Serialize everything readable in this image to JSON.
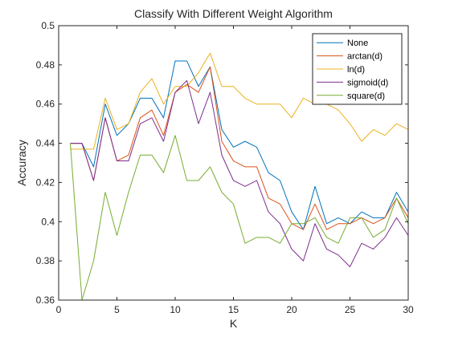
{
  "chart_data": {
    "type": "line",
    "title": "Classify With Different Weight Algorithm",
    "xlabel": "K",
    "ylabel": "Accuracy",
    "xlim": [
      0,
      30
    ],
    "ylim": [
      0.36,
      0.5
    ],
    "xticks": [
      0,
      5,
      10,
      15,
      20,
      25,
      30
    ],
    "yticks": [
      0.36,
      0.38,
      0.4,
      0.42,
      0.44,
      0.46,
      0.48,
      0.5
    ],
    "xtick_labels": [
      "0",
      "5",
      "10",
      "15",
      "20",
      "25",
      "30"
    ],
    "ytick_labels": [
      "0.36",
      "0.38",
      "0.4",
      "0.42",
      "0.44",
      "0.46",
      "0.48",
      "0.5"
    ],
    "grid": false,
    "legend_position": "top-right",
    "x": [
      1,
      2,
      3,
      4,
      5,
      6,
      7,
      8,
      9,
      10,
      11,
      12,
      13,
      14,
      15,
      16,
      17,
      18,
      19,
      20,
      21,
      22,
      23,
      24,
      25,
      26,
      27,
      28,
      29,
      30
    ],
    "series": [
      {
        "name": "None",
        "color": "#0072BD",
        "values": [
          0.44,
          0.44,
          0.428,
          0.46,
          0.444,
          0.45,
          0.463,
          0.463,
          0.453,
          0.482,
          0.482,
          0.469,
          0.479,
          0.447,
          0.438,
          0.441,
          0.438,
          0.425,
          0.421,
          0.405,
          0.396,
          0.418,
          0.399,
          0.402,
          0.399,
          0.405,
          0.402,
          0.402,
          0.415,
          0.405
        ]
      },
      {
        "name": "arctan(d)",
        "color": "#D95319",
        "values": [
          0.44,
          0.44,
          0.421,
          0.453,
          0.431,
          0.434,
          0.453,
          0.457,
          0.444,
          0.466,
          0.47,
          0.466,
          0.479,
          0.441,
          0.431,
          0.428,
          0.428,
          0.412,
          0.409,
          0.399,
          0.396,
          0.409,
          0.396,
          0.399,
          0.399,
          0.402,
          0.399,
          0.402,
          0.412,
          0.402
        ]
      },
      {
        "name": "ln(d)",
        "color": "#EDB120",
        "values": [
          0.437,
          0.437,
          0.437,
          0.463,
          0.447,
          0.45,
          0.466,
          0.473,
          0.46,
          0.469,
          0.469,
          0.476,
          0.486,
          0.469,
          0.469,
          0.463,
          0.46,
          0.46,
          0.46,
          0.453,
          0.463,
          0.46,
          0.46,
          0.457,
          0.45,
          0.441,
          0.447,
          0.444,
          0.45,
          0.447
        ]
      },
      {
        "name": "sigmoid(d)",
        "color": "#7E2F8E",
        "values": [
          0.44,
          0.44,
          0.421,
          0.453,
          0.431,
          0.431,
          0.45,
          0.453,
          0.441,
          0.466,
          0.472,
          0.45,
          0.466,
          0.434,
          0.421,
          0.418,
          0.421,
          0.405,
          0.399,
          0.386,
          0.38,
          0.399,
          0.386,
          0.383,
          0.377,
          0.389,
          0.386,
          0.392,
          0.402,
          0.393
        ]
      },
      {
        "name": "square(d)",
        "color": "#77AC30",
        "values": [
          0.44,
          0.36,
          0.38,
          0.415,
          0.393,
          0.415,
          0.434,
          0.434,
          0.425,
          0.444,
          0.421,
          0.421,
          0.428,
          0.415,
          0.409,
          0.389,
          0.392,
          0.392,
          0.389,
          0.399,
          0.399,
          0.402,
          0.392,
          0.389,
          0.402,
          0.402,
          0.392,
          0.396,
          0.412,
          0.399
        ]
      }
    ]
  }
}
